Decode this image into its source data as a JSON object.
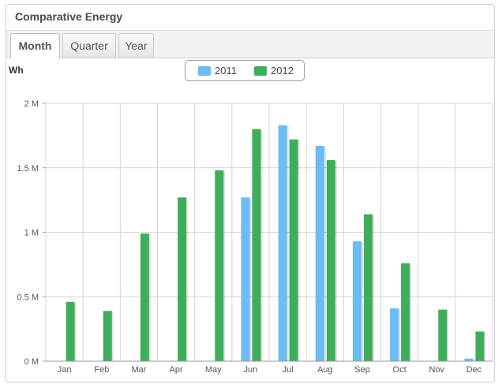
{
  "panel": {
    "title": "Comparative Energy"
  },
  "tabs": [
    {
      "label": "Month",
      "active": true
    },
    {
      "label": "Quarter",
      "active": false
    },
    {
      "label": "Year",
      "active": false
    }
  ],
  "colors": {
    "series_2011": "#6bbcf4",
    "series_2012": "#3fae5c",
    "grid": "#d4d4d4"
  },
  "chart_data": {
    "type": "bar",
    "ylabel": "Wh",
    "categories": [
      "Jan",
      "Feb",
      "Mar",
      "Apr",
      "May",
      "Jun",
      "Jul",
      "Aug",
      "Sep",
      "Oct",
      "Nov",
      "Dec"
    ],
    "series": [
      {
        "name": "2011",
        "values": [
          0,
          0,
          0,
          0,
          0,
          1270000,
          1830000,
          1670000,
          930000,
          410000,
          0,
          20000
        ]
      },
      {
        "name": "2012",
        "values": [
          460000,
          390000,
          990000,
          1270000,
          1480000,
          1800000,
          1720000,
          1560000,
          1140000,
          760000,
          400000,
          230000
        ]
      }
    ],
    "ylim": [
      0,
      2000000
    ],
    "yticks": [
      0,
      500000,
      1000000,
      1500000,
      2000000
    ],
    "ytick_labels": [
      "0 M",
      "0.5 M",
      "1 M",
      "1.5 M",
      "2 M"
    ],
    "legend": "top-center",
    "grid": true
  }
}
